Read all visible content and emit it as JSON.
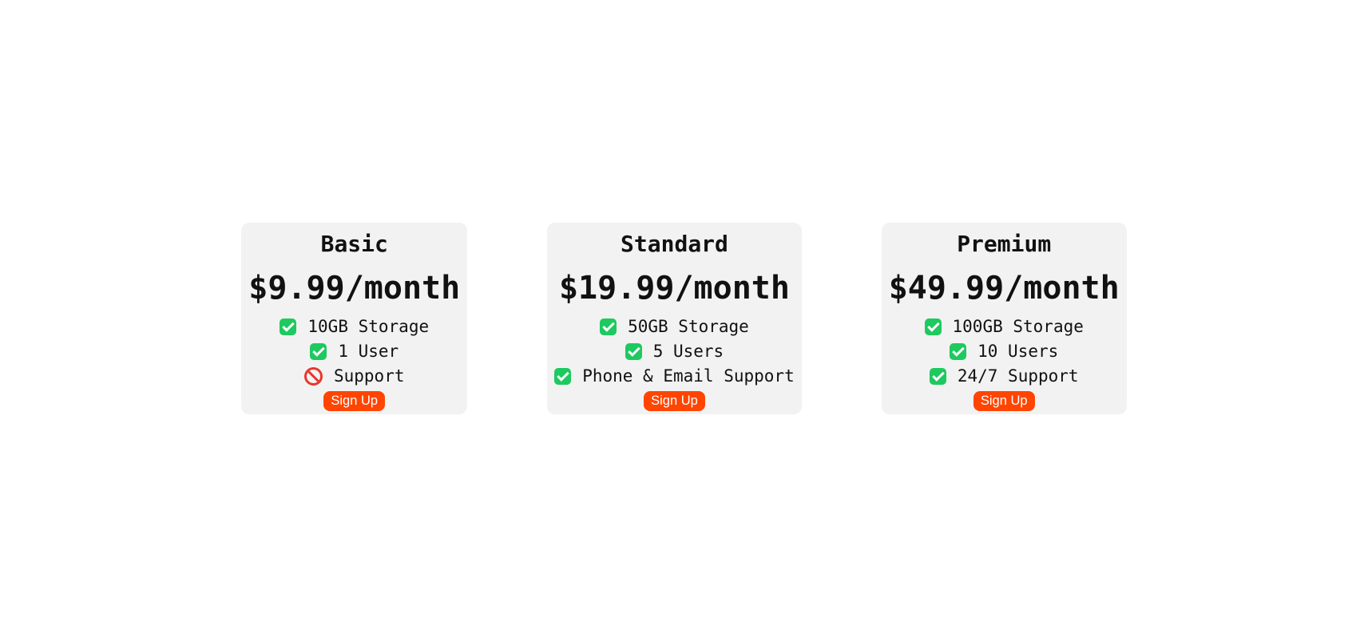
{
  "colors": {
    "page_background": "#ffffff",
    "card_background": "#f2f2f2",
    "button_accent": "#ff4500",
    "button_text": "#ffffff",
    "check_green": "#1ec95f",
    "no_red": "#e8372c",
    "text": "#111111"
  },
  "plans": [
    {
      "name": "Basic",
      "price": "$9.99/month",
      "features": [
        {
          "icon": "check-icon",
          "label": "10GB Storage"
        },
        {
          "icon": "check-icon",
          "label": "1 User"
        },
        {
          "icon": "no-icon",
          "label": "Support"
        }
      ],
      "cta": "Sign Up"
    },
    {
      "name": "Standard",
      "price": "$19.99/month",
      "features": [
        {
          "icon": "check-icon",
          "label": "50GB Storage"
        },
        {
          "icon": "check-icon",
          "label": "5 Users"
        },
        {
          "icon": "check-icon",
          "label": "Phone & Email Support"
        }
      ],
      "cta": "Sign Up"
    },
    {
      "name": "Premium",
      "price": "$49.99/month",
      "features": [
        {
          "icon": "check-icon",
          "label": "100GB Storage"
        },
        {
          "icon": "check-icon",
          "label": "10 Users"
        },
        {
          "icon": "check-icon",
          "label": "24/7 Support"
        }
      ],
      "cta": "Sign Up"
    }
  ]
}
